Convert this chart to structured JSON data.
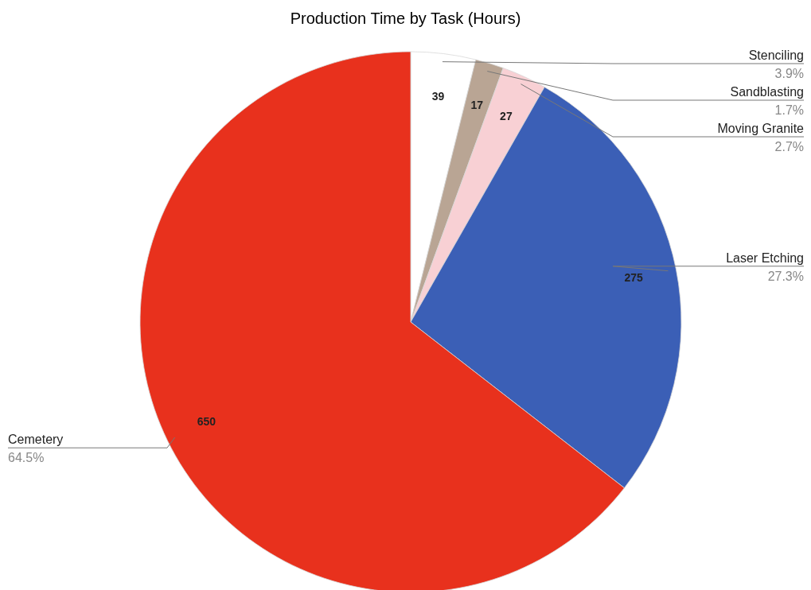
{
  "chart_data": {
    "type": "pie",
    "title": "Production Time by Task (Hours)",
    "categories": [
      "Stenciling",
      "Sandblasting",
      "Moving Granite",
      "Laser Etching",
      "Cemetery"
    ],
    "values": [
      39,
      17,
      27,
      275,
      650
    ],
    "colors": [
      "#ffffff",
      "#b9a594",
      "#f8d0d4",
      "#3b5fb6",
      "#e8311d"
    ],
    "annotations": [
      "3.9%",
      "1.7%",
      "2.7%",
      "27.3%",
      "64.5%"
    ],
    "data_labels": true
  }
}
